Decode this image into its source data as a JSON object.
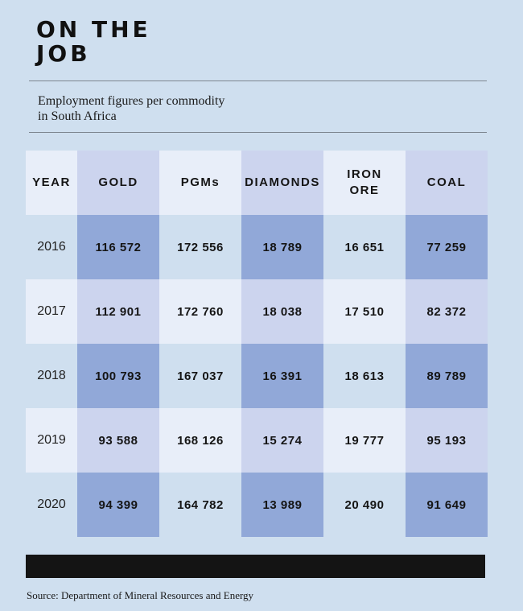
{
  "title": [
    "ON THE",
    "JOB"
  ],
  "subtitle": [
    "Employment figures per commodity",
    "in South Africa"
  ],
  "source": "Source: Department of Mineral Resources and Energy",
  "colors": {
    "background": "#cfdfef",
    "col_light": "#e8eef9",
    "col_dark": "#ccd4ee",
    "row_tint": "#cfdfef",
    "highlight": "#91a8d8",
    "footer_bar": "#141414"
  },
  "chart_data": {
    "type": "table",
    "columns": [
      "YEAR",
      "GOLD",
      "PGMs",
      "DIAMONDS",
      "IRON ORE",
      "COAL"
    ],
    "rows": [
      {
        "year": "2016",
        "values": [
          "116 572",
          "172 556",
          "18 789",
          "16 651",
          "77 259"
        ]
      },
      {
        "year": "2017",
        "values": [
          "112 901",
          "172 760",
          "18 038",
          "17 510",
          "82 372"
        ]
      },
      {
        "year": "2018",
        "values": [
          "100 793",
          "167 037",
          "16 391",
          "18 613",
          "89 789"
        ]
      },
      {
        "year": "2019",
        "values": [
          "93 588",
          "168 126",
          "15 274",
          "19 777",
          "95 193"
        ]
      },
      {
        "year": "2020",
        "values": [
          "94 399",
          "164 782",
          "13 989",
          "20 490",
          "91 649"
        ]
      }
    ]
  }
}
